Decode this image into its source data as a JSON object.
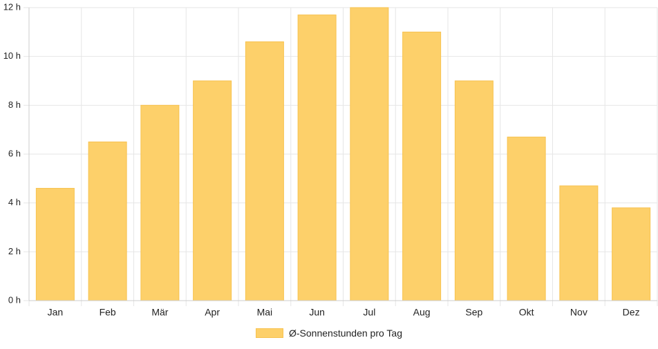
{
  "chart_data": {
    "type": "bar",
    "categories": [
      "Jan",
      "Feb",
      "Mär",
      "Apr",
      "Mai",
      "Jun",
      "Jul",
      "Aug",
      "Sep",
      "Okt",
      "Nov",
      "Dez"
    ],
    "series": [
      {
        "name": "Ø-Sonnenstunden pro Tag",
        "values": [
          4.6,
          6.5,
          8.0,
          9.0,
          10.6,
          11.7,
          12.0,
          11.0,
          9.0,
          6.7,
          4.7,
          3.8
        ]
      }
    ],
    "y_ticks": [
      "0 h",
      "2 h",
      "4 h",
      "6 h",
      "8 h",
      "10 h",
      "12 h"
    ],
    "ylim": [
      0,
      12
    ],
    "grid": true,
    "legend_position": "bottom",
    "colors": {
      "bar": "#fdd06a",
      "bar_border": "#f7c24f",
      "grid": "#e6e6e6",
      "axis": "#cccccc"
    }
  }
}
